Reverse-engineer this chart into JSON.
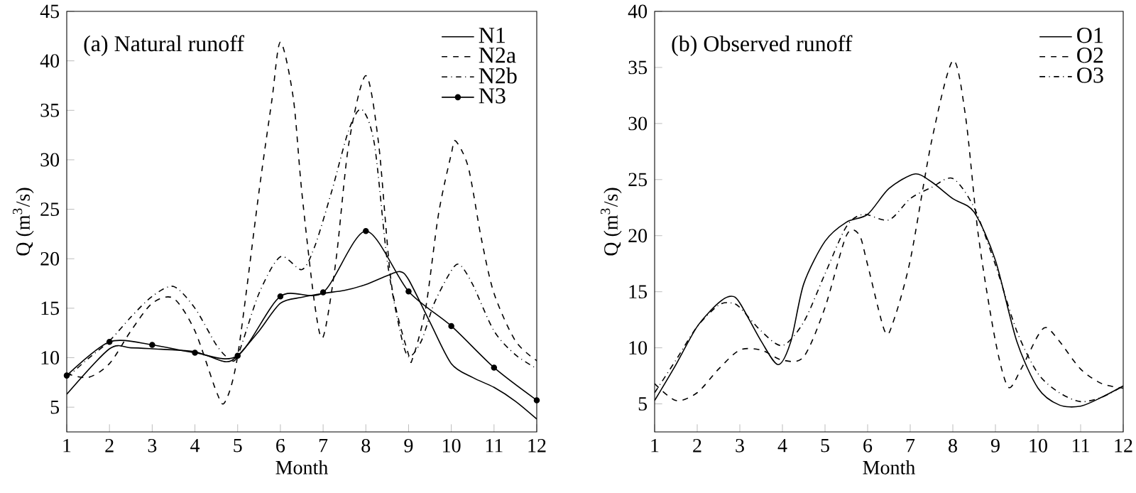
{
  "chart_data": [
    {
      "type": "line",
      "title": "(a) Natural runoff",
      "xlabel": "Month",
      "ylabel": "Q (m$^{3}$/s)",
      "xlim": [
        1,
        12
      ],
      "xticks": [
        1,
        2,
        3,
        4,
        5,
        6,
        7,
        8,
        9,
        10,
        11,
        12
      ],
      "ylim": [
        2.5,
        45
      ],
      "yticks": [
        5,
        10,
        15,
        20,
        25,
        30,
        35,
        40,
        45
      ],
      "grid": false,
      "legend": "top right",
      "series": [
        {
          "name": "N1",
          "color": "#000000",
          "line_style": "solid",
          "x": [
            1,
            2,
            2.5,
            3,
            4,
            4.7,
            5,
            5.5,
            6,
            6.5,
            7,
            7.5,
            8,
            8.5,
            8.8,
            9,
            9.5,
            10,
            10.5,
            11,
            11.5,
            12
          ],
          "values": [
            6.3,
            10.9,
            11,
            10.9,
            10.6,
            9.6,
            10.2,
            12.7,
            15.5,
            16.1,
            16.5,
            16.8,
            17.4,
            18.3,
            18.7,
            17.9,
            13.6,
            9.4,
            8,
            7,
            5.6,
            3.8
          ]
        },
        {
          "name": "N2a",
          "color": "#000000",
          "line_style": "dashed",
          "x": [
            1,
            1.5,
            2,
            2.5,
            3,
            3.5,
            4,
            4.5,
            4.7,
            5,
            5.5,
            5.8,
            6,
            6.3,
            6.5,
            6.8,
            7,
            7.3,
            7.6,
            8,
            8.3,
            8.6,
            9,
            9.1,
            9.4,
            9.7,
            10,
            10.1,
            10.4,
            10.7,
            11,
            11.5,
            12
          ],
          "values": [
            8.4,
            8,
            9.4,
            12.7,
            15.5,
            16,
            12.7,
            6.6,
            5.5,
            10.2,
            26.8,
            36,
            41.9,
            36.3,
            26.8,
            15.5,
            12.1,
            19.8,
            31.6,
            38.5,
            31.6,
            17.4,
            10.3,
            10,
            15,
            24.5,
            30.6,
            31.9,
            29.2,
            22.1,
            16.5,
            11.7,
            9.7
          ]
        },
        {
          "name": "N2b",
          "color": "#000000",
          "line_style": "dashdotted",
          "x": [
            1,
            1.5,
            2,
            2.5,
            3,
            3.5,
            4,
            4.5,
            4.8,
            5,
            5.5,
            6,
            6.5,
            6.8,
            7.2,
            7.6,
            7.9,
            8.2,
            8.5,
            8.8,
            9,
            9.3,
            9.6,
            10,
            10.2,
            10.5,
            11,
            11.5,
            12
          ],
          "values": [
            8,
            9.9,
            11.7,
            14.1,
            16.2,
            17.2,
            15,
            11.3,
            9.9,
            10.2,
            16.5,
            20.2,
            18.9,
            21.2,
            26.8,
            33,
            35.1,
            31.6,
            19.8,
            12.7,
            10.1,
            11.7,
            15.5,
            18.8,
            19.4,
            17.4,
            12.7,
            10.3,
            8.9
          ]
        },
        {
          "name": "N3",
          "color": "#000000",
          "line_style": "solid",
          "marker": "circle",
          "x": [
            1,
            2,
            3,
            4,
            5,
            6,
            7,
            8,
            9,
            10,
            11,
            12
          ],
          "values": [
            8.2,
            11.6,
            11.3,
            10.5,
            10.2,
            16.2,
            16.6,
            22.8,
            16.7,
            13.2,
            9,
            5.7
          ]
        }
      ]
    },
    {
      "type": "line",
      "title": "(b) Observed runoff",
      "xlabel": "Month",
      "ylabel": "Q (m$^{3}$/s)",
      "xlim": [
        1,
        12
      ],
      "xticks": [
        1,
        2,
        3,
        4,
        5,
        6,
        7,
        8,
        9,
        10,
        11,
        12
      ],
      "ylim": [
        2.5,
        40
      ],
      "yticks": [
        5,
        10,
        15,
        20,
        25,
        30,
        35,
        40
      ],
      "grid": false,
      "legend": "top right",
      "series": [
        {
          "name": "O1",
          "color": "#000000",
          "line_style": "solid",
          "x": [
            1,
            1.5,
            2,
            2.5,
            2.8,
            3,
            3.5,
            3.9,
            4.2,
            4.5,
            5,
            5.5,
            6,
            6.5,
            7.1,
            7.5,
            8,
            8.5,
            9,
            9.5,
            10,
            10.5,
            11,
            11.5,
            12
          ],
          "values": [
            5.3,
            8.5,
            11.9,
            14,
            14.6,
            14,
            10.6,
            8.5,
            10.6,
            15.7,
            19.5,
            21.2,
            21.9,
            24.2,
            25.5,
            24.8,
            23.3,
            22.1,
            17.8,
            10.6,
            6.4,
            4.9,
            4.8,
            5.6,
            6.6
          ]
        },
        {
          "name": "O2",
          "color": "#000000",
          "line_style": "dashed",
          "x": [
            1,
            1.5,
            2,
            2.5,
            3,
            3.5,
            4,
            4.5,
            5,
            5.5,
            5.8,
            6,
            6.4,
            6.6,
            7,
            7.5,
            8,
            8.3,
            8.6,
            9,
            9.3,
            9.6,
            10,
            10.2,
            10.5,
            11,
            11.5,
            12
          ],
          "values": [
            6.8,
            5.3,
            6,
            8.1,
            9.8,
            9.8,
            8.9,
            9.2,
            13.6,
            20,
            20.1,
            17.4,
            11.5,
            12.3,
            17.8,
            28.4,
            35.6,
            30.6,
            20,
            10.6,
            6.5,
            8.1,
            11.1,
            11.8,
            10.6,
            8.1,
            6.8,
            6.4
          ]
        },
        {
          "name": "O3",
          "color": "#000000",
          "line_style": "dashdotted",
          "x": [
            1,
            1.5,
            2,
            2.5,
            2.8,
            3,
            3.5,
            4,
            4.5,
            5,
            5.5,
            5.9,
            6.5,
            7,
            7.5,
            8,
            8.5,
            9,
            9.5,
            10,
            10.5,
            11,
            11.5,
            12
          ],
          "values": [
            6,
            8.9,
            11.9,
            13.8,
            14,
            13.6,
            11.5,
            10.2,
            12.3,
            16.6,
            20.8,
            21.9,
            21.4,
            23.3,
            24.3,
            25.1,
            22.5,
            17.4,
            11.5,
            7.7,
            6,
            5.2,
            5.6,
            6.6
          ]
        }
      ]
    }
  ]
}
